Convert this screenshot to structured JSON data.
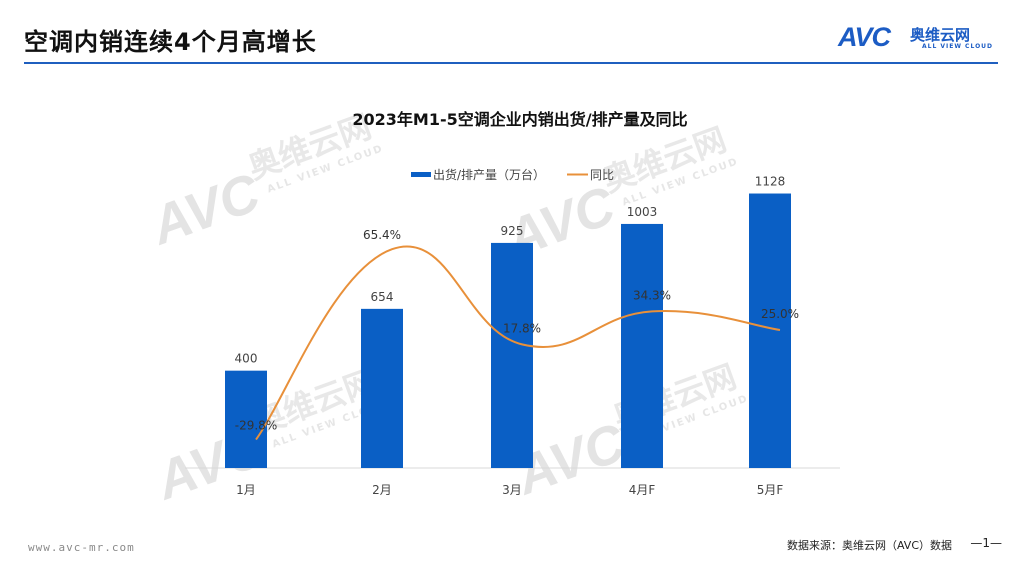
{
  "page": {
    "title": "空调内销连续4个月高增长",
    "logo": {
      "mark": "AVC",
      "cn": "奥维云网",
      "en": "ALL VIEW CLOUD"
    },
    "footer_url": "www.avc-mr.com",
    "source": "数据来源：奥维云网（AVC）数据",
    "page_number": "—1—",
    "accent_color": "#1f5fbf"
  },
  "chart_data": {
    "type": "bar",
    "title": "2023年M1-5空调企业内销出货/排产量及同比",
    "categories": [
      "1月",
      "2月",
      "3月",
      "4月F",
      "5月F"
    ],
    "series": [
      {
        "name": "出货/排产量（万台）",
        "type": "bar",
        "color": "#0a5fc5",
        "values": [
          400,
          654,
          925,
          1003,
          1128
        ],
        "labels": [
          "400",
          "654",
          "925",
          "1003",
          "1128"
        ]
      },
      {
        "name": "同比",
        "type": "line",
        "color": "#e8903a",
        "values": [
          -29.8,
          65.4,
          17.8,
          34.3,
          25.0
        ],
        "labels": [
          "-29.8%",
          "65.4%",
          "17.8%",
          "34.3%",
          "25.0%"
        ]
      }
    ],
    "ylim": [
      0,
      1200
    ],
    "y2lim": [
      -50,
      90
    ],
    "legend_position": "top-center",
    "grid": false
  }
}
